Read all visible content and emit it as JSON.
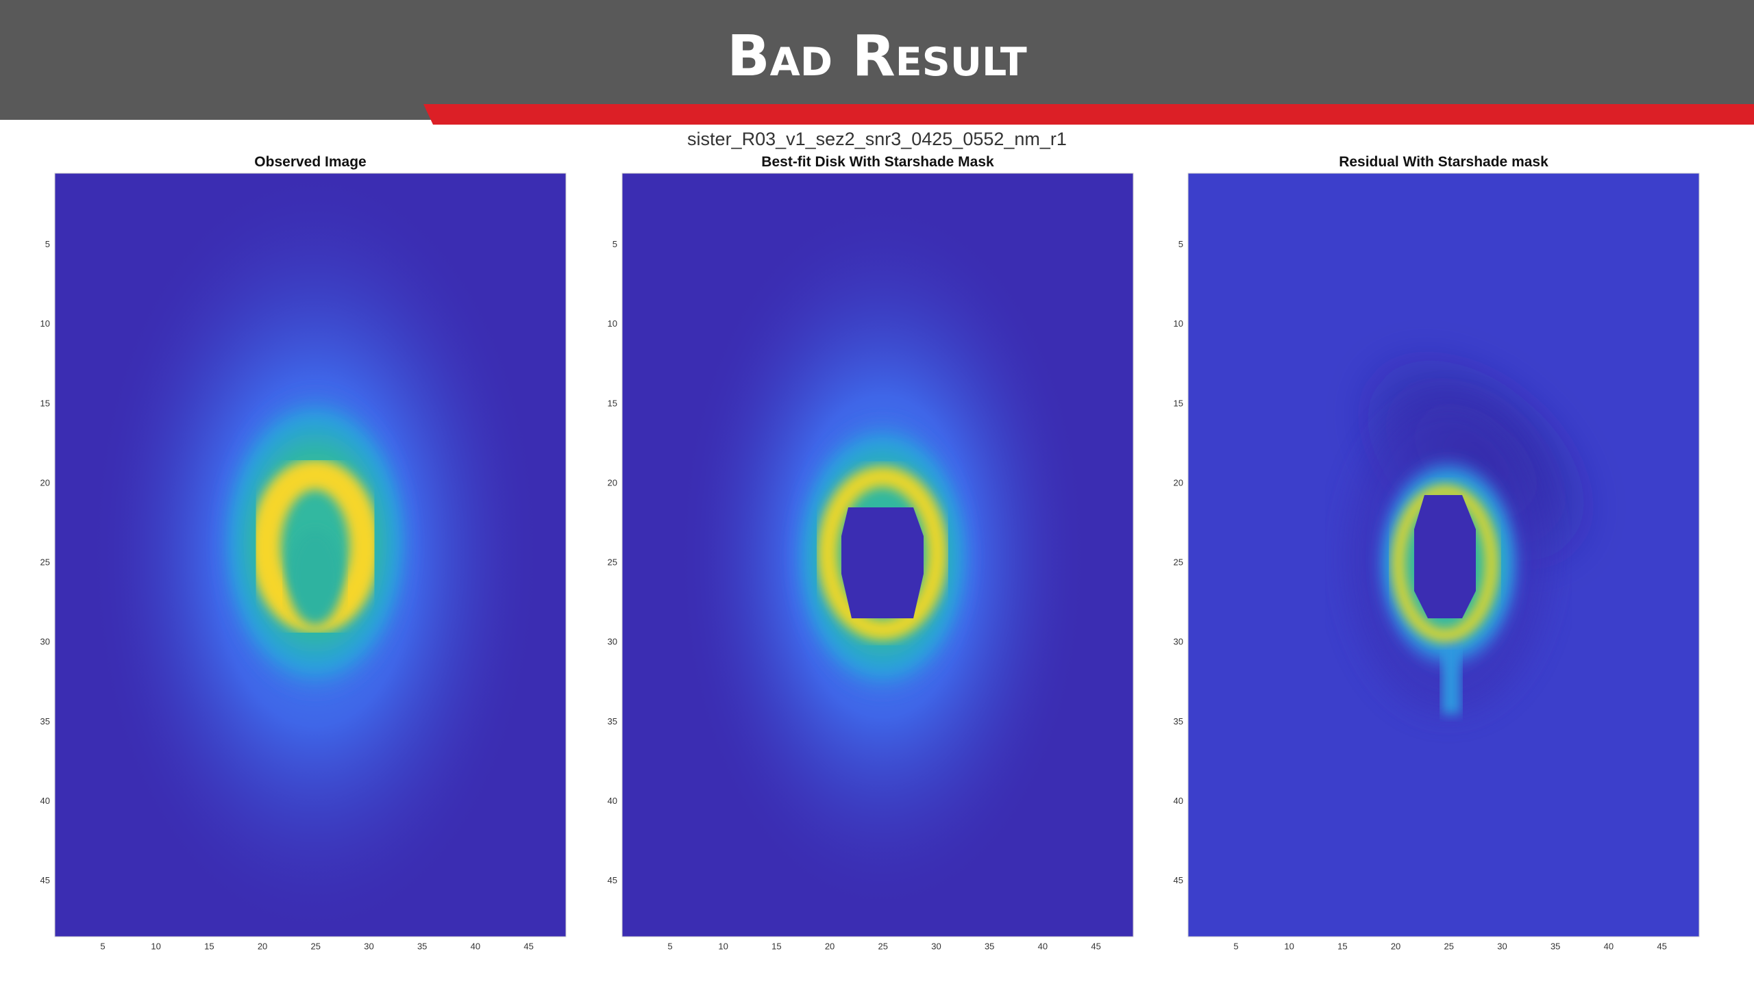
{
  "header": {
    "title": "Bad Result"
  },
  "figure": {
    "title": "sister_R03_v1_sez2_snr3_0425_0552_nm_r1",
    "panels": [
      {
        "title": "Observed Image",
        "xlim": [
          0.5,
          48.5
        ],
        "ylim": [
          0.5,
          48.5
        ],
        "xticks": [
          5,
          10,
          15,
          20,
          25,
          30,
          35,
          40,
          45
        ],
        "yticks": [
          5,
          10,
          15,
          20,
          25,
          30,
          35,
          40,
          45
        ]
      },
      {
        "title": "Best-fit Disk With Starshade Mask",
        "xlim": [
          0.5,
          48.5
        ],
        "ylim": [
          0.5,
          48.5
        ],
        "xticks": [
          5,
          10,
          15,
          20,
          25,
          30,
          35,
          40,
          45
        ],
        "yticks": [
          5,
          10,
          15,
          20,
          25,
          30,
          35,
          40,
          45
        ]
      },
      {
        "title": "Residual With Starshade mask",
        "xlim": [
          0.5,
          48.5
        ],
        "ylim": [
          0.5,
          48.5
        ],
        "xticks": [
          5,
          10,
          15,
          20,
          25,
          30,
          35,
          40,
          45
        ],
        "yticks": [
          5,
          10,
          15,
          20,
          25,
          30,
          35,
          40,
          45
        ]
      }
    ]
  }
}
